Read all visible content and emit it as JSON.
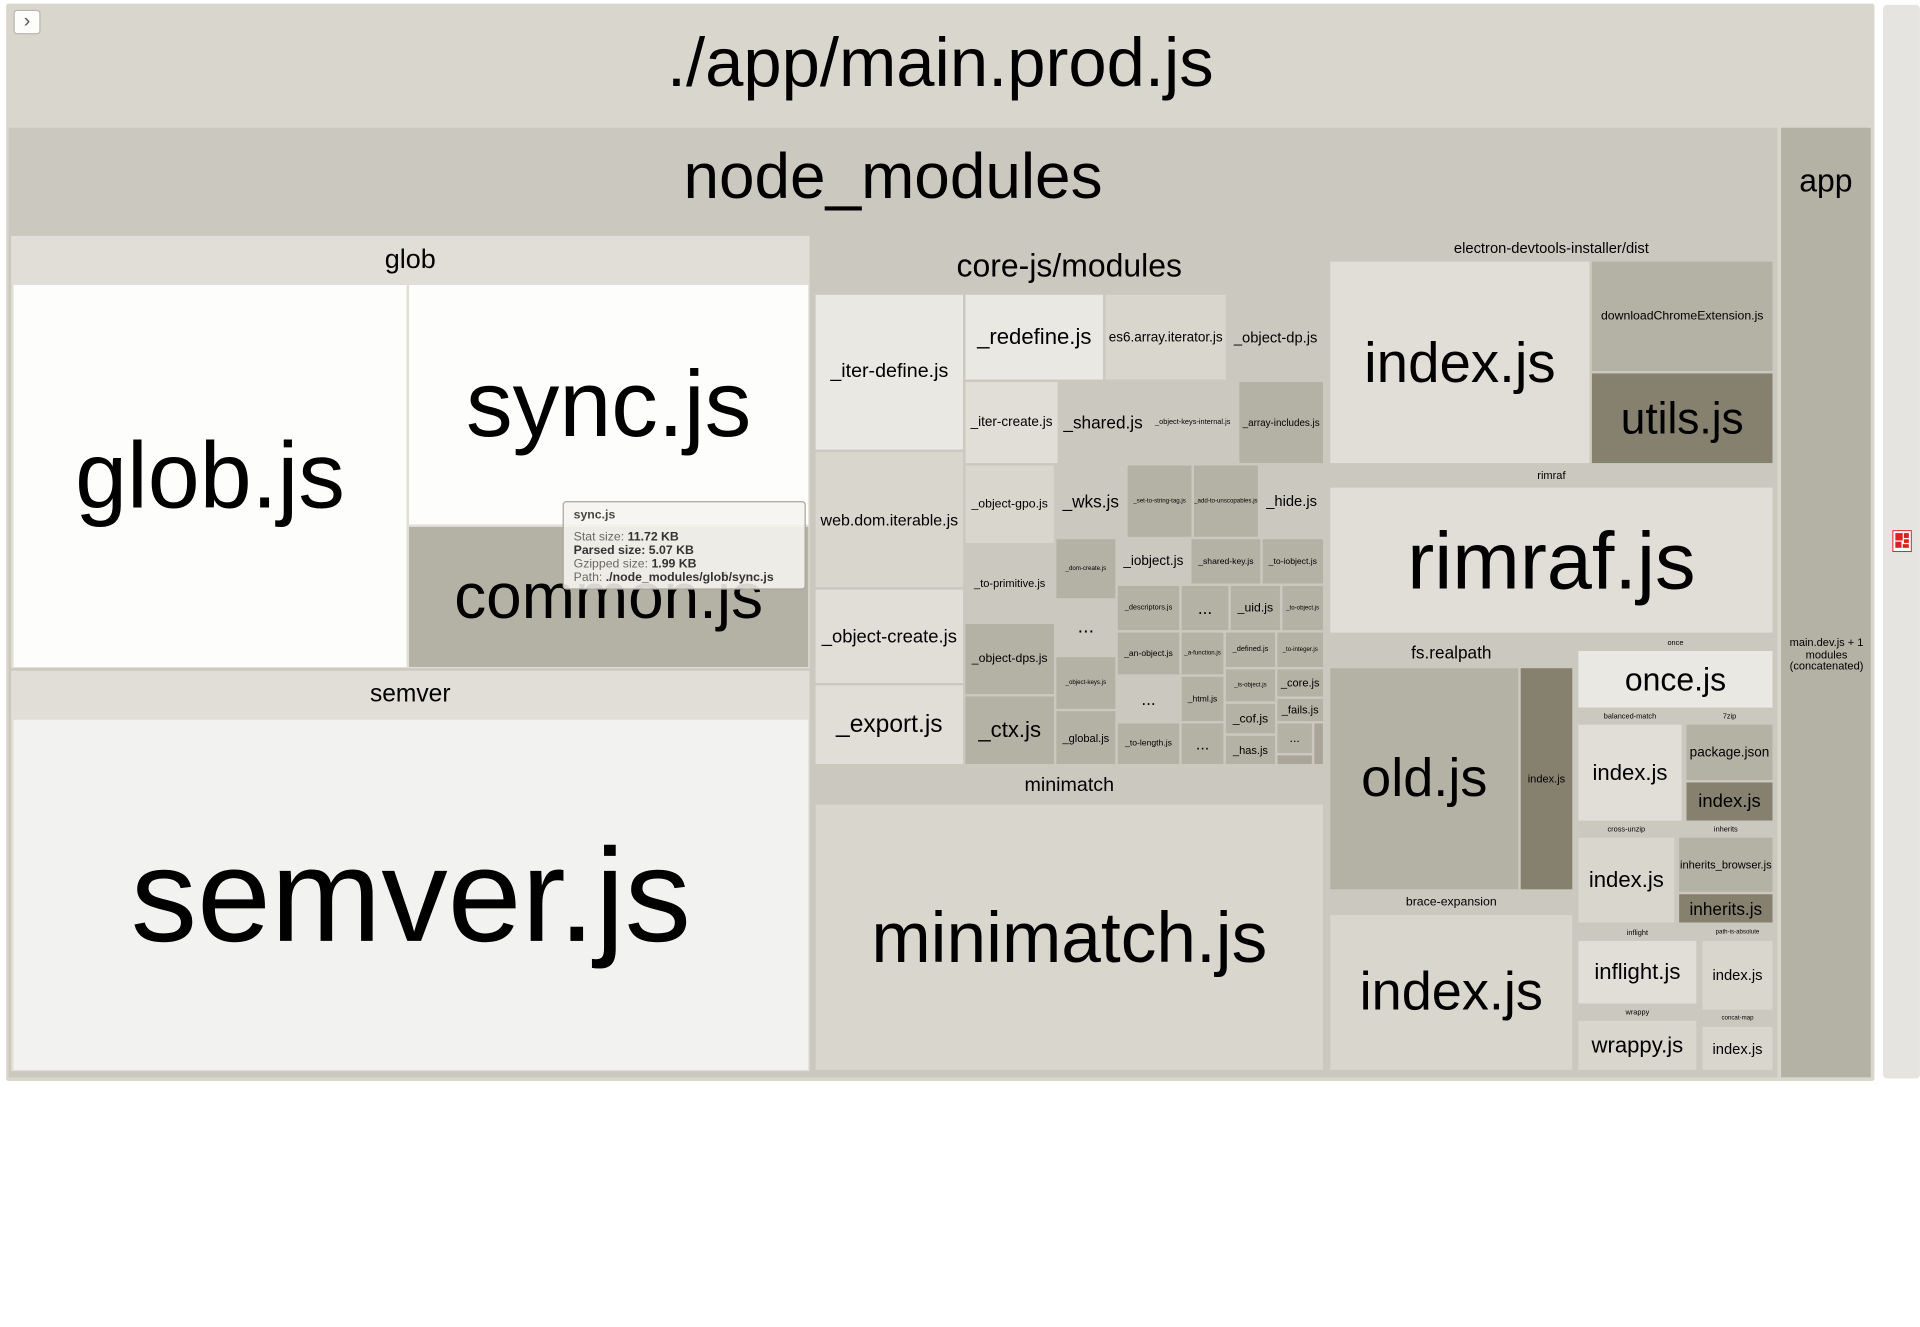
{
  "colors": {
    "root": "#d8d6cd",
    "node_modules": "#cbc9bf",
    "tooltip_bg": "#f5f4ef",
    "dark": "#85816e",
    "mid": "#b4b1a5",
    "light": "#e0ded6",
    "white": "#fdfdfb",
    "icon_red": "#e02020"
  },
  "toolbar": {
    "toggle_icon": "chevron-right-icon",
    "toggle_glyph": "›"
  },
  "root": {
    "label": "./app/main.prod.js"
  },
  "node_modules": {
    "label": "node_modules"
  },
  "app": {
    "label": "app",
    "child": "main.dev.js + 1 modules (concatenated)"
  },
  "glob": {
    "label": "glob",
    "glob_js": "glob.js",
    "sync_js": "sync.js",
    "common_js": "common.js"
  },
  "semver": {
    "label": "semver",
    "semver_js": "semver.js"
  },
  "core_js": {
    "label": "core-js/modules",
    "iter_define": "_iter-define.js",
    "redefine": "_redefine.js",
    "es6_array_iterator": "es6.array.iterator.js",
    "object_dp": "_object-dp.js",
    "iter_create": "_iter-create.js",
    "shared": "_shared.js",
    "object_keys_internal": "_object-keys-internal.js",
    "array_includes": "_array-includes.js",
    "web_dom_iterable": "web.dom.iterable.js",
    "object_gpo": "_object-gpo.js",
    "wks": "_wks.js",
    "set_to_string_tag": "_set-to-string-tag.js",
    "add_to_unscopables": "_add-to-unscopables.js",
    "hide": "_hide.js",
    "dom_create": "_dom-create.js",
    "iobject": "_iobject.js",
    "shared_key": "_shared-key.js",
    "to_iobject": "_to-iobject.js",
    "to_primitive": "_to-primitive.js",
    "ellipsis": "...",
    "descriptors": "_descriptors.js",
    "uid": "_uid.js",
    "to_object": "_to-object.js",
    "object_create": "_object-create.js",
    "an_object": "_an-object.js",
    "a_function": "_a-function.js",
    "defined": "_defined.js",
    "to_integer": "_to-integer.js",
    "object_dps": "_object-dps.js",
    "object_keys": "_object-keys.js",
    "is_object": "_is-object.js",
    "core": "_core.js",
    "html": "_html.js",
    "fails": "_fails.js",
    "cof": "_cof.js",
    "export": "_export.js",
    "ctx": "_ctx.js",
    "global": "_global.js",
    "to_length": "_to-length.js",
    "has": "_has.js"
  },
  "minimatch": {
    "label": "minimatch",
    "minimatch_js": "minimatch.js"
  },
  "electron_devtools": {
    "label": "electron-devtools-installer/dist",
    "index_js": "index.js",
    "download": "downloadChromeExtension.js",
    "utils": "utils.js"
  },
  "rimraf": {
    "label": "rimraf",
    "rimraf_js": "rimraf.js"
  },
  "fs_realpath": {
    "label": "fs.realpath",
    "old_js": "old.js",
    "index_js": "index.js"
  },
  "brace_expansion": {
    "label": "brace-expansion",
    "index_js": "index.js"
  },
  "once": {
    "label": "once",
    "once_js": "once.js"
  },
  "balanced_match": {
    "label": "balanced-match",
    "index_js": "index.js"
  },
  "unzip_7zip": {
    "label": "7zip",
    "package_json": "package.json",
    "index_js": "index.js"
  },
  "cross_unzip": {
    "label": "cross-unzip",
    "index_js": "index.js"
  },
  "inherits": {
    "label": "inherits",
    "inherits_browser": "inherits_browser.js",
    "inherits_js": "inherits.js"
  },
  "inflight": {
    "label": "inflight",
    "inflight_js": "inflight.js"
  },
  "path_is_absolute": {
    "label": "path-is-absolute",
    "index_js": "index.js"
  },
  "wrappy": {
    "label": "wrappy",
    "wrappy_js": "wrappy.js"
  },
  "concat_map": {
    "label": "concat-map",
    "index_js": "index.js"
  },
  "tooltip": {
    "title": "sync.js",
    "stat_label": "Stat size:",
    "stat_value": "11.72 KB",
    "parsed_label": "Parsed size:",
    "parsed_value": "5.07 KB",
    "gzipped_label": "Gzipped size:",
    "gzipped_value": "1.99 KB",
    "path_label": "Path:",
    "path_value": "./node_modules/glob/sync.js"
  }
}
